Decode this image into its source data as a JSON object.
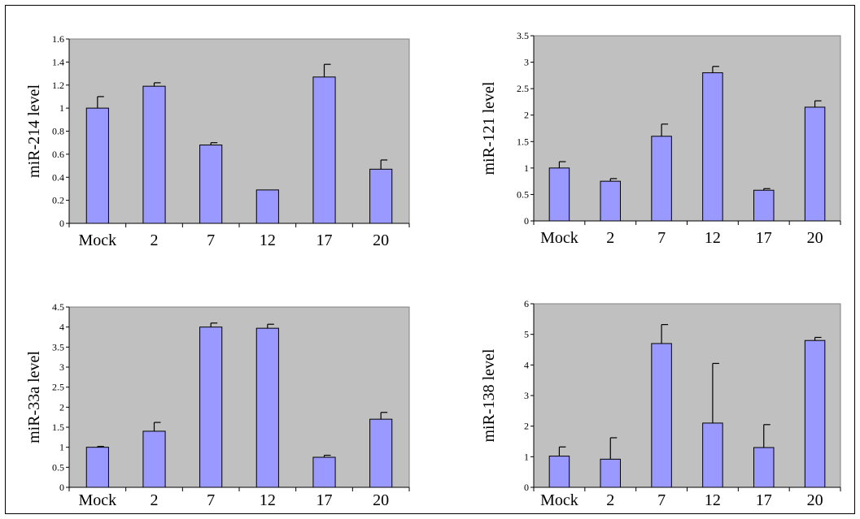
{
  "colors": {
    "plot_bg": "#c0c0c0",
    "bar_fill": "#9999ff",
    "bar_stroke": "#000000",
    "highlight_label": "#ff0000",
    "normal_label": "#000000"
  },
  "chart_data": [
    {
      "type": "bar",
      "ylabel": "miR-214 level",
      "categories": [
        "Mock",
        "2",
        "7",
        "12",
        "17",
        "20"
      ],
      "highlighted_categories": [
        "2",
        "17"
      ],
      "values": [
        1.0,
        1.19,
        0.68,
        0.29,
        1.27,
        0.47
      ],
      "error": [
        0.1,
        0.03,
        0.02,
        0.0,
        0.11,
        0.08
      ],
      "ylim": [
        0,
        1.6
      ],
      "yticks": [
        "0",
        "0.2",
        "0.4",
        "0.6",
        "0.8",
        "1",
        "1.2",
        "1.4",
        "1.6"
      ]
    },
    {
      "type": "bar",
      "ylabel": "miR-121 level",
      "categories": [
        "Mock",
        "2",
        "7",
        "12",
        "17",
        "20"
      ],
      "highlighted_categories": [
        "2",
        "17"
      ],
      "values": [
        1.0,
        0.75,
        1.6,
        2.8,
        0.58,
        2.15
      ],
      "error": [
        0.12,
        0.05,
        0.23,
        0.12,
        0.03,
        0.12
      ],
      "ylim": [
        0,
        3.5
      ],
      "yticks": [
        "0",
        "0.5",
        "1",
        "1.5",
        "2",
        "2.5",
        "3",
        "3.5"
      ]
    },
    {
      "type": "bar",
      "ylabel": "miR-33a level",
      "categories": [
        "Mock",
        "2",
        "7",
        "12",
        "17",
        "20"
      ],
      "highlighted_categories": [
        "2",
        "17"
      ],
      "values": [
        1.0,
        1.4,
        4.0,
        3.97,
        0.75,
        1.7
      ],
      "error": [
        0.02,
        0.22,
        0.1,
        0.1,
        0.05,
        0.17
      ],
      "ylim": [
        0,
        4.5
      ],
      "yticks": [
        "0",
        "0.5",
        "1",
        "1.5",
        "2",
        "2.5",
        "3",
        "3.5",
        "4",
        "4.5"
      ]
    },
    {
      "type": "bar",
      "ylabel": "miR-138 level",
      "categories": [
        "Mock",
        "2",
        "7",
        "12",
        "17",
        "20"
      ],
      "highlighted_categories": [
        "2",
        "17"
      ],
      "values": [
        1.02,
        0.92,
        4.7,
        2.1,
        1.3,
        4.8
      ],
      "error": [
        0.3,
        0.7,
        0.62,
        1.95,
        0.75,
        0.1
      ],
      "ylim": [
        0,
        6
      ],
      "yticks": [
        "0",
        "1",
        "2",
        "3",
        "4",
        "5",
        "6"
      ]
    }
  ]
}
